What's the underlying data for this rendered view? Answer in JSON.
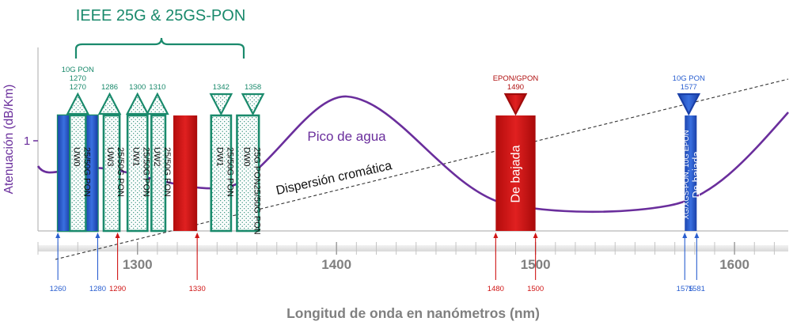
{
  "chart_data": {
    "type": "diagram",
    "title": "IEEE 25G & 25GS-PON",
    "xlabel": "Longitud de onda en nanómetros (nm)",
    "ylabel": "Atenuación (dB/Km)",
    "xlim": [
      1250,
      1627
    ],
    "x_ticks": [
      1300,
      1400,
      1500,
      1600
    ],
    "y_ticks": [
      1
    ],
    "curve_labels": {
      "water_peak": "Pico de agua",
      "dispersion": "Dispersión cromática"
    },
    "bands": [
      {
        "id": "uw0",
        "start": 1260,
        "end": 1280,
        "label": "UW0",
        "sub": "25/50G PON",
        "style": "dotted"
      },
      {
        "id": "uw3",
        "start": 1283,
        "end": 1291,
        "label": "UW3",
        "sub": "25/50G PON",
        "style": "dotted"
      },
      {
        "id": "uw1",
        "start": 1295,
        "end": 1305,
        "label": "UW1",
        "sub": "25/50G PON",
        "style": "dotted"
      },
      {
        "id": "uw2",
        "start": 1307,
        "end": 1314,
        "label": "UW2",
        "sub": "25/50G PON",
        "style": "dotted"
      },
      {
        "id": "red-1330",
        "start": 1318,
        "end": 1330,
        "label": "",
        "sub": "",
        "style": "red"
      },
      {
        "id": "dw1",
        "start": 1337,
        "end": 1347,
        "label": "DW1",
        "sub": "25/50G PON",
        "style": "dotted"
      },
      {
        "id": "dw0",
        "start": 1350,
        "end": 1361,
        "label": "DW0",
        "sub": "25G PON25/50G PON",
        "style": "dotted"
      },
      {
        "id": "downstream-gpon",
        "start": 1480,
        "end": 1500,
        "label": "De bajada",
        "sub": "",
        "style": "red"
      },
      {
        "id": "downstream-xgs",
        "start": 1575,
        "end": 1581,
        "label": "De bajada",
        "sub": "XG/XGS-PON, 10G EPON",
        "style": "blue"
      }
    ],
    "markers": [
      {
        "id": "m1270",
        "x": 1270,
        "dir": "up",
        "color": "green",
        "lines": [
          "10G PON",
          "1270",
          "1270"
        ]
      },
      {
        "id": "m1286",
        "x": 1286,
        "dir": "up",
        "color": "green",
        "lines": [
          "1286"
        ]
      },
      {
        "id": "m1300",
        "x": 1300,
        "dir": "up",
        "color": "green",
        "lines": [
          "1300"
        ]
      },
      {
        "id": "m1310",
        "x": 1310,
        "dir": "up",
        "color": "green",
        "lines": [
          "1310"
        ]
      },
      {
        "id": "m1342",
        "x": 1342,
        "dir": "down",
        "color": "green",
        "lines": [
          "1342"
        ]
      },
      {
        "id": "m1358",
        "x": 1358,
        "dir": "down",
        "color": "green",
        "lines": [
          "1358"
        ]
      },
      {
        "id": "m1490",
        "x": 1490,
        "dir": "down",
        "color": "red",
        "lines": [
          "EPON/GPON",
          "1490"
        ]
      },
      {
        "id": "m1577",
        "x": 1577,
        "dir": "down",
        "color": "blue",
        "lines": [
          "10G PON",
          "1577"
        ]
      }
    ],
    "boundaries": [
      {
        "x": 1260,
        "label": "1260",
        "color": "blue"
      },
      {
        "x": 1280,
        "label": "1280",
        "color": "blue"
      },
      {
        "x": 1290,
        "label": "1290",
        "color": "red"
      },
      {
        "x": 1330,
        "label": "1330",
        "color": "red"
      },
      {
        "x": 1480,
        "label": "1480",
        "color": "red"
      },
      {
        "x": 1500,
        "label": "1500",
        "color": "red"
      },
      {
        "x": 1575,
        "label": "1575",
        "color": "blue"
      },
      {
        "x": 1581,
        "label": "1581",
        "color": "blue"
      }
    ],
    "colors": {
      "green": "#1a8a6c",
      "red": "#d01515",
      "blue": "#2a5fd0",
      "purple": "#6a2e9c",
      "axis_text": "#808080"
    }
  }
}
